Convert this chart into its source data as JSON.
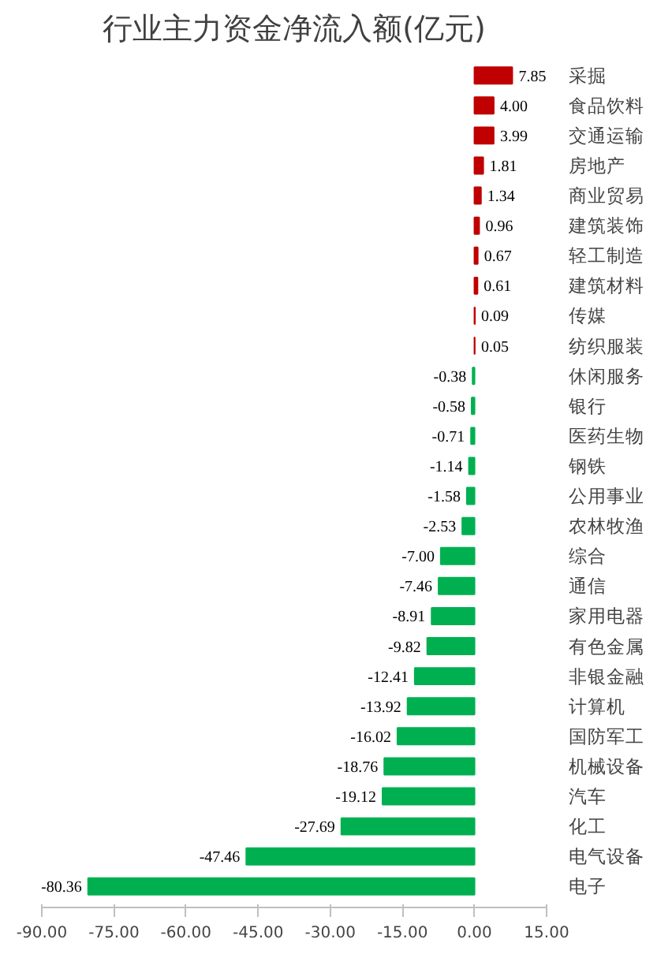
{
  "chart_data": {
    "type": "bar",
    "orientation": "horizontal",
    "title": "行业主力资金净流入额(亿元)",
    "categories": [
      "采掘",
      "食品饮料",
      "交通运输",
      "房地产",
      "商业贸易",
      "建筑装饰",
      "轻工制造",
      "建筑材料",
      "传媒",
      "纺织服装",
      "休闲服务",
      "银行",
      "医药生物",
      "钢铁",
      "公用事业",
      "农林牧渔",
      "综合",
      "通信",
      "家用电器",
      "有色金属",
      "非银金融",
      "计算机",
      "国防军工",
      "机械设备",
      "汽车",
      "化工",
      "电气设备",
      "电子"
    ],
    "values": [
      7.85,
      4.0,
      3.99,
      1.81,
      1.34,
      0.96,
      0.67,
      0.61,
      0.09,
      0.05,
      -0.38,
      -0.58,
      -0.71,
      -1.14,
      -1.58,
      -2.53,
      -7.0,
      -7.46,
      -8.91,
      -9.82,
      -12.41,
      -13.92,
      -16.02,
      -18.76,
      -19.12,
      -27.69,
      -47.46,
      -80.36
    ],
    "value_labels": [
      "7.85",
      "4.00",
      "3.99",
      "1.81",
      "1.34",
      "0.96",
      "0.67",
      "0.61",
      "0.09",
      "0.05",
      "-0.38",
      "-0.58",
      "-0.71",
      "-1.14",
      "-1.58",
      "-2.53",
      "-7.00",
      "-7.46",
      "-8.91",
      "-9.82",
      "-12.41",
      "-13.92",
      "-16.02",
      "-18.76",
      "-19.12",
      "-27.69",
      "-47.46",
      "-80.36"
    ],
    "colors": [
      "#c00000",
      "#c00000",
      "#c00000",
      "#c00000",
      "#c00000",
      "#c00000",
      "#c00000",
      "#c00000",
      "#c00000",
      "#c00000",
      "#00b050",
      "#00b050",
      "#00b050",
      "#00b050",
      "#00b050",
      "#00b050",
      "#00b050",
      "#00b050",
      "#00b050",
      "#00b050",
      "#00b050",
      "#00b050",
      "#00b050",
      "#00b050",
      "#00b050",
      "#00b050",
      "#00b050",
      "#00b050"
    ],
    "xlim": [
      -90,
      15
    ],
    "xticks": [
      {
        "value": -90,
        "label": "-90.00"
      },
      {
        "value": -75,
        "label": "-75.00"
      },
      {
        "value": -60,
        "label": "-60.00"
      },
      {
        "value": -45,
        "label": "-45.00"
      },
      {
        "value": -30,
        "label": "-30.00"
      },
      {
        "value": -15,
        "label": "-15.00"
      },
      {
        "value": 0,
        "label": "0.00"
      },
      {
        "value": 15,
        "label": "15.00"
      }
    ],
    "grid": false
  }
}
